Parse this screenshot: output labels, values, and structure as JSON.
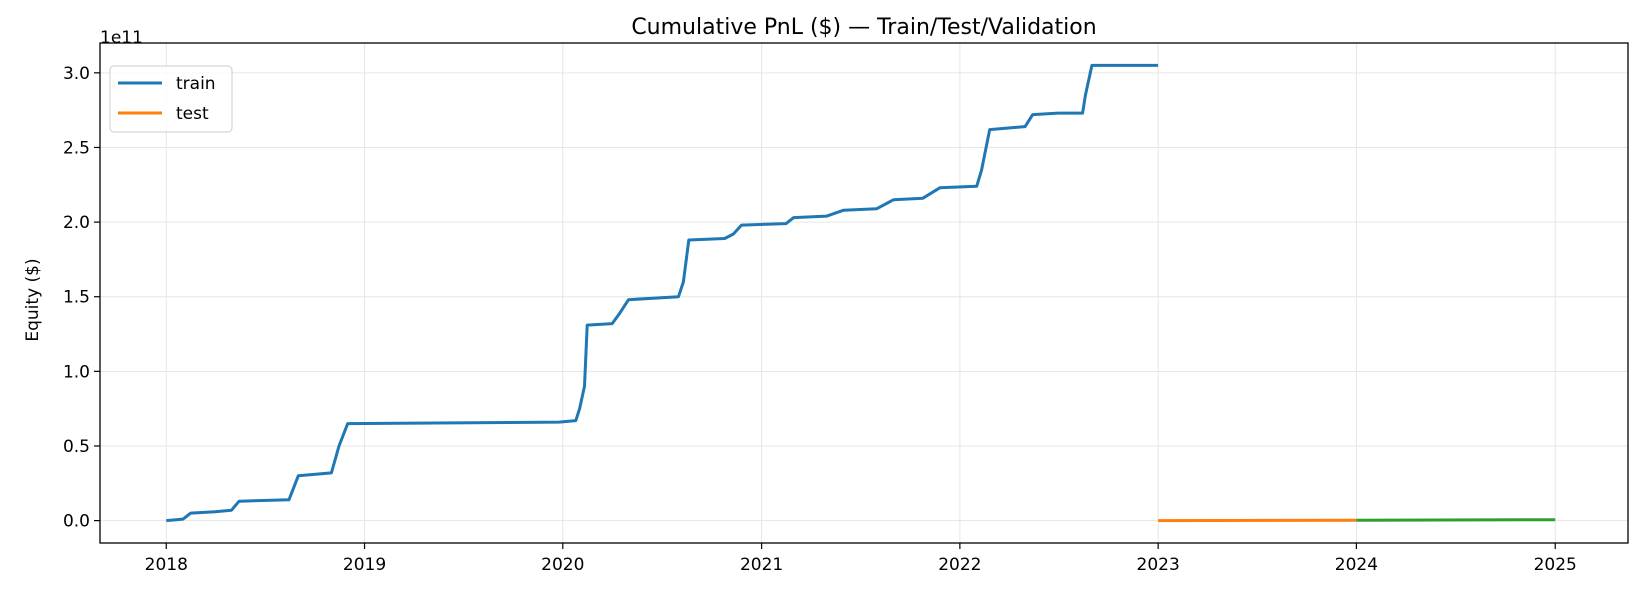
{
  "chart_data": {
    "type": "line",
    "title": "Cumulative PnL ($) — Train/Test/Validation",
    "xlabel": "",
    "ylabel": "Equity ($)",
    "y_offset_label": "1e11",
    "xlim": [
      "2017-09-01",
      "2025-05-15"
    ],
    "ylim": [
      -0.15,
      3.2
    ],
    "y_scale_note": "values in units of 1e11 dollars",
    "x_ticks": [
      "2018",
      "2019",
      "2020",
      "2021",
      "2022",
      "2023",
      "2024",
      "2025"
    ],
    "y_ticks": [
      "0.0",
      "0.5",
      "1.0",
      "1.5",
      "2.0",
      "2.5",
      "3.0"
    ],
    "grid": true,
    "legend_position": "top-left",
    "legend": [
      "train",
      "test"
    ],
    "colors": {
      "train": "#1f77b4",
      "test": "#ff7f0e",
      "third": "#2ca02c"
    },
    "series": [
      {
        "name": "train",
        "color": "#1f77b4",
        "points": [
          [
            "2018-01-01",
            0.0
          ],
          [
            "2018-02-01",
            0.01
          ],
          [
            "2018-02-15",
            0.05
          ],
          [
            "2018-04-01",
            0.06
          ],
          [
            "2018-05-01",
            0.07
          ],
          [
            "2018-05-15",
            0.13
          ],
          [
            "2018-08-15",
            0.14
          ],
          [
            "2018-09-01",
            0.3
          ],
          [
            "2018-11-01",
            0.32
          ],
          [
            "2018-11-15",
            0.5
          ],
          [
            "2018-12-01",
            0.65
          ],
          [
            "2019-12-25",
            0.66
          ],
          [
            "2020-01-25",
            0.67
          ],
          [
            "2020-02-01",
            0.75
          ],
          [
            "2020-02-10",
            0.9
          ],
          [
            "2020-02-15",
            1.31
          ],
          [
            "2020-04-01",
            1.32
          ],
          [
            "2020-04-15",
            1.39
          ],
          [
            "2020-05-01",
            1.48
          ],
          [
            "2020-08-01",
            1.5
          ],
          [
            "2020-08-10",
            1.6
          ],
          [
            "2020-08-20",
            1.88
          ],
          [
            "2020-10-25",
            1.89
          ],
          [
            "2020-11-10",
            1.92
          ],
          [
            "2020-11-25",
            1.98
          ],
          [
            "2021-02-15",
            1.99
          ],
          [
            "2021-03-01",
            2.03
          ],
          [
            "2021-05-01",
            2.04
          ],
          [
            "2021-06-01",
            2.08
          ],
          [
            "2021-08-01",
            2.09
          ],
          [
            "2021-09-01",
            2.15
          ],
          [
            "2021-10-25",
            2.16
          ],
          [
            "2021-11-25",
            2.23
          ],
          [
            "2022-02-01",
            2.24
          ],
          [
            "2022-02-10",
            2.35
          ],
          [
            "2022-02-25",
            2.62
          ],
          [
            "2022-05-01",
            2.64
          ],
          [
            "2022-05-15",
            2.72
          ],
          [
            "2022-07-01",
            2.73
          ],
          [
            "2022-08-15",
            2.73
          ],
          [
            "2022-08-20",
            2.85
          ],
          [
            "2022-09-01",
            3.05
          ],
          [
            "2023-01-01",
            3.05
          ]
        ]
      },
      {
        "name": "test",
        "color": "#ff7f0e",
        "points": [
          [
            "2023-01-01",
            0.0
          ],
          [
            "2024-01-01",
            0.003
          ]
        ]
      },
      {
        "color": "#2ca02c",
        "points": [
          [
            "2024-01-01",
            0.003
          ],
          [
            "2025-01-01",
            0.006
          ]
        ]
      }
    ]
  }
}
